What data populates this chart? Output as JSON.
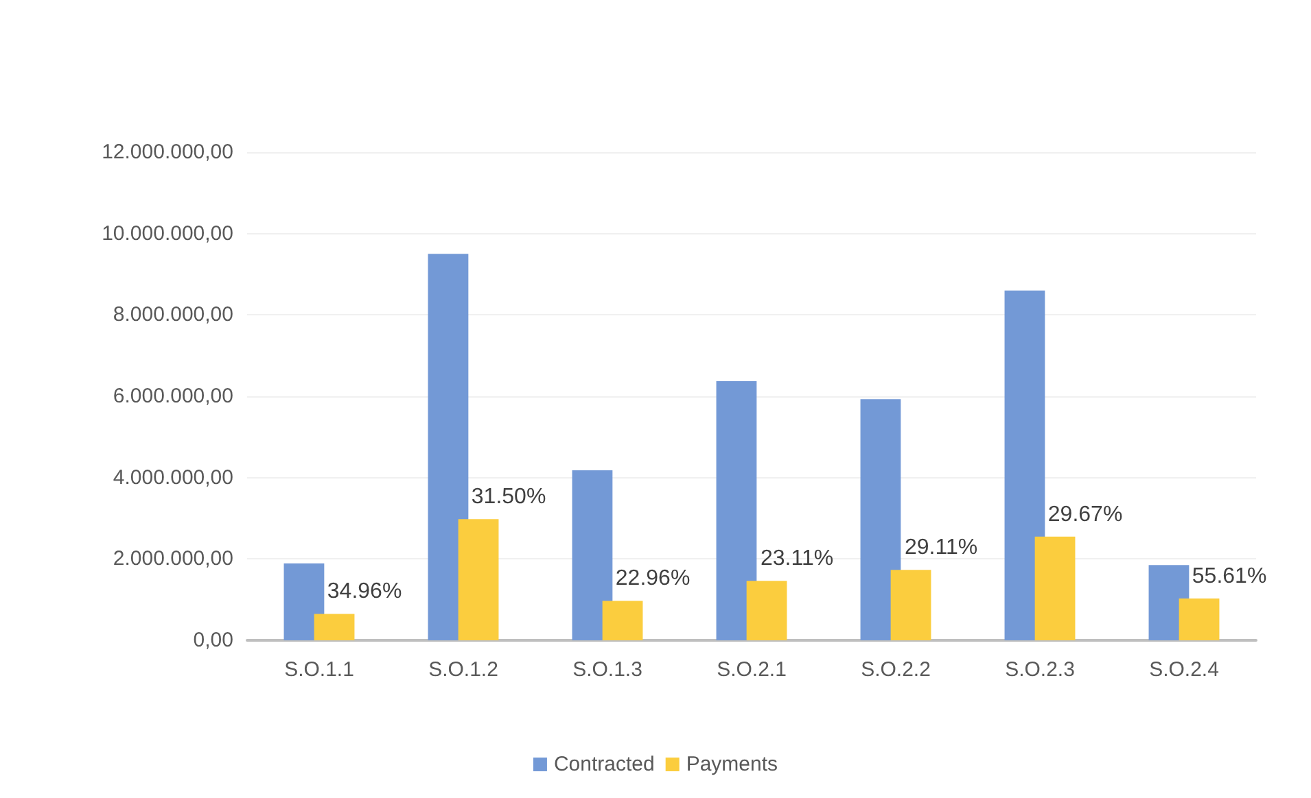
{
  "chart_data": {
    "type": "bar",
    "categories": [
      "S.O.1.1",
      "S.O.1.2",
      "S.O.1.3",
      "S.O.2.1",
      "S.O.2.2",
      "S.O.2.3",
      "S.O.2.4"
    ],
    "series": [
      {
        "name": "Contracted",
        "color": "#7399d6",
        "values": [
          1890000,
          9500000,
          4180000,
          6370000,
          5930000,
          8600000,
          1850000
        ]
      },
      {
        "name": "Payments",
        "color": "#fbcd3e",
        "values": [
          650000,
          2980000,
          970000,
          1460000,
          1730000,
          2550000,
          1030000
        ]
      }
    ],
    "annotations": [
      {
        "text": "34.96%",
        "x": "S.O.1.1",
        "y": 650000
      },
      {
        "text": "31.50%",
        "x": "S.O.1.2",
        "y": 2980000
      },
      {
        "text": "22.96%",
        "x": "S.O.1.3",
        "y": 970000
      },
      {
        "text": "23.11%",
        "x": "S.O.2.1",
        "y": 1460000
      },
      {
        "text": "29.11%",
        "x": "S.O.2.2",
        "y": 1730000
      },
      {
        "text": "29.67%",
        "x": "S.O.2.3",
        "y": 2550000
      },
      {
        "text": "55.61%",
        "x": "S.O.2.4",
        "y": 1030000
      }
    ],
    "ylim": [
      0,
      12000000
    ],
    "yticks": [
      {
        "value": 0,
        "label": "0,00"
      },
      {
        "value": 2000000,
        "label": "2.000.000,00"
      },
      {
        "value": 4000000,
        "label": "4.000.000,00"
      },
      {
        "value": 6000000,
        "label": "6.000.000,00"
      },
      {
        "value": 8000000,
        "label": "8.000.000,00"
      },
      {
        "value": 10000000,
        "label": "10.000.000,00"
      },
      {
        "value": 12000000,
        "label": "12.000.000,00"
      }
    ],
    "grid": "y",
    "legend": "bottom"
  }
}
